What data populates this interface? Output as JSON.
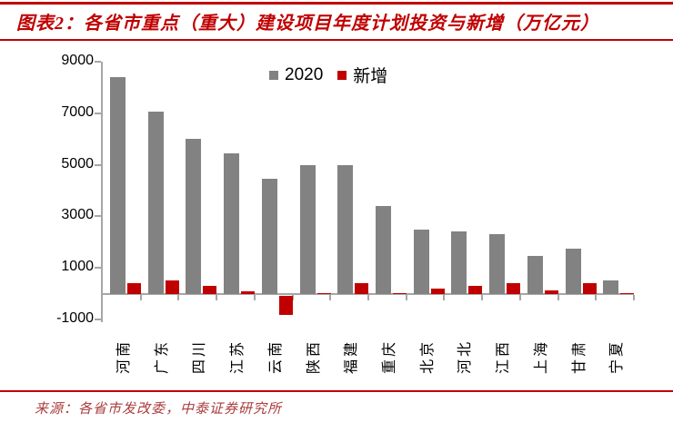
{
  "header": {
    "title": "图表2：各省市重点（重大）建设项目年度计划投资与新增（万亿元）"
  },
  "chart_data": {
    "type": "bar",
    "title": "图表2：各省市重点（重大）建设项目年度计划投资与新增（万亿元）",
    "categories": [
      "河南",
      "广东",
      "四川",
      "江苏",
      "云南",
      "陕西",
      "福建",
      "重庆",
      "北京",
      "河北",
      "江西",
      "上海",
      "甘肃",
      "宁夏"
    ],
    "series": [
      {
        "name": "2020",
        "color": "#828282",
        "values": [
          8400,
          7050,
          6000,
          5450,
          4450,
          5000,
          5000,
          3400,
          2500,
          2400,
          2300,
          1450,
          1750,
          520
        ]
      },
      {
        "name": "新增",
        "color": "#c00000",
        "values": [
          400,
          500,
          300,
          80,
          -750,
          30,
          400,
          30,
          200,
          300,
          400,
          120,
          420,
          20
        ]
      }
    ],
    "ylim": [
      -1000,
      9000
    ],
    "yticks": [
      9000,
      7000,
      5000,
      3000,
      1000,
      -1000
    ],
    "xlabel": "",
    "ylabel": "",
    "legend_position": "top-center",
    "grid": false
  },
  "colors": {
    "accent_red": "#c00000",
    "bar_gray": "#828282",
    "bar_red": "#c00000",
    "axis_gray": "#a6a6a6",
    "source_red": "#a93c3c"
  },
  "footer": {
    "source": "来源：各省市发改委，中泰证券研究所"
  }
}
